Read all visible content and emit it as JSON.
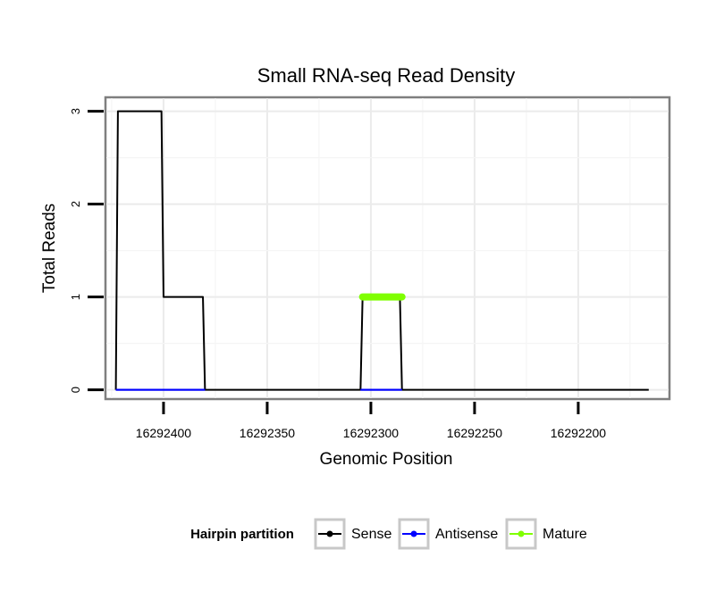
{
  "chart_data": {
    "type": "line",
    "title": "Small RNA-seq Read Density",
    "xlabel": "Genomic Position",
    "ylabel": "Total Reads",
    "x_reversed": true,
    "xlim": [
      16292428,
      16292156
    ],
    "ylim": [
      -0.1,
      3.15
    ],
    "x_ticks": [
      16292400,
      16292350,
      16292300,
      16292250,
      16292200
    ],
    "y_ticks": [
      0,
      1,
      2,
      3
    ],
    "grid": true,
    "legend": {
      "title": "Hairpin partition",
      "position": "bottom",
      "entries": [
        {
          "name": "Sense",
          "color": "#000000"
        },
        {
          "name": "Antisense",
          "color": "#0000ff"
        },
        {
          "name": "Mature",
          "color": "#7fff00"
        }
      ]
    },
    "series": [
      {
        "name": "Sense",
        "color": "#000000",
        "x": [
          16292423,
          16292422,
          16292401,
          16292400,
          16292381,
          16292380,
          16292305,
          16292304,
          16292286,
          16292285,
          16292166
        ],
        "y": [
          0,
          3,
          3,
          1,
          1,
          0,
          0,
          1,
          1,
          0,
          0
        ]
      },
      {
        "name": "Antisense",
        "color": "#0000ff",
        "x": [
          16292423,
          16292380,
          16292305,
          16292285
        ],
        "y": [
          0,
          0,
          0,
          0
        ],
        "segments": [
          [
            0,
            1
          ],
          [
            2,
            3
          ]
        ]
      },
      {
        "name": "Mature",
        "color": "#7fff00",
        "x": [
          16292304,
          16292285
        ],
        "y": [
          1,
          1
        ]
      }
    ]
  }
}
